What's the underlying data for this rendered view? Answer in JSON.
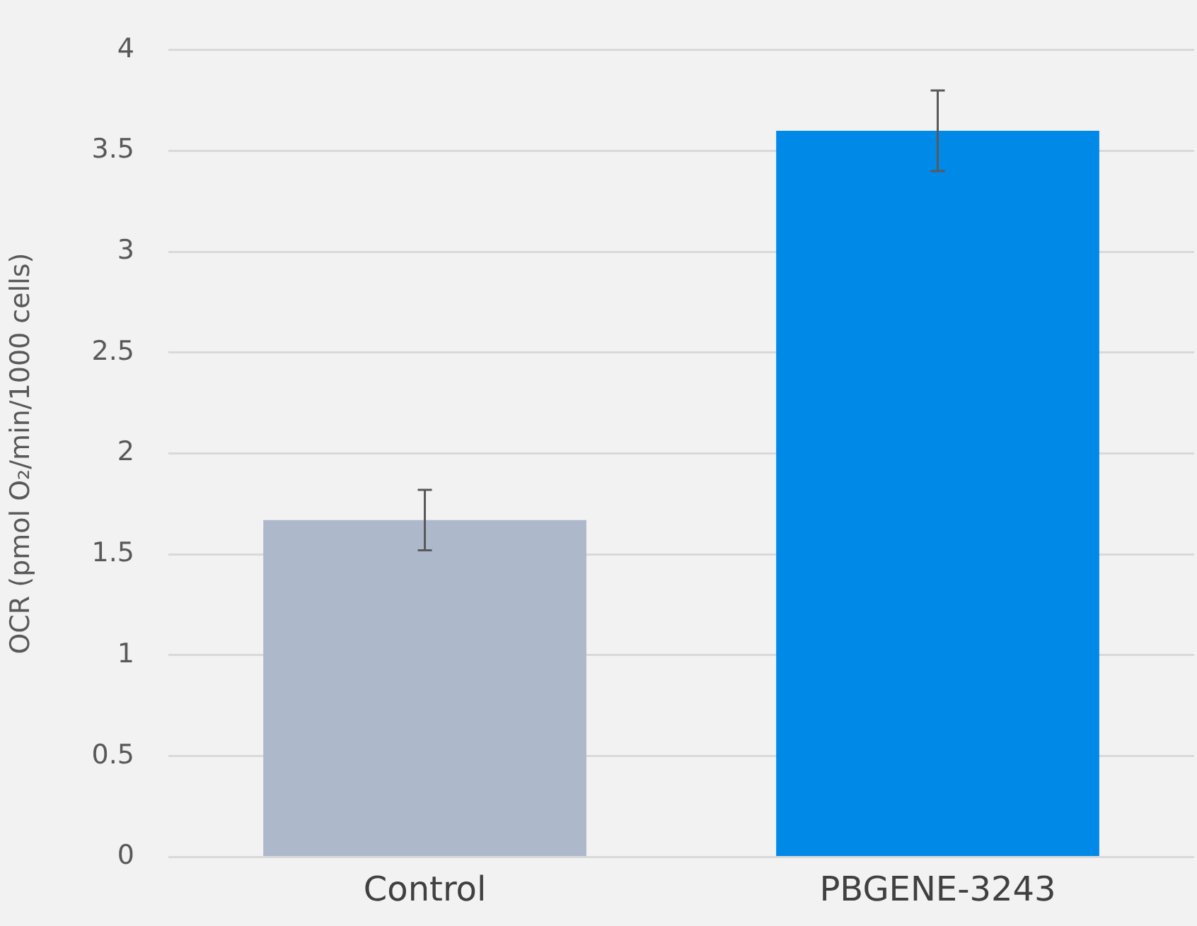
{
  "chart_data": {
    "type": "bar",
    "ylabel": "OCR (pmol O₂/min/1000 cells)",
    "categories": [
      "Control",
      "PBGENE-3243"
    ],
    "values": [
      1.67,
      3.6
    ],
    "colors": [
      "#adb9ca",
      "#0089e7"
    ],
    "errors": [
      [
        1.52,
        1.82
      ],
      [
        3.4,
        3.8
      ]
    ],
    "ylim": [
      0,
      4
    ],
    "yticks": [
      0,
      0.5,
      1,
      1.5,
      2,
      2.5,
      3,
      3.5,
      4
    ],
    "grid": "y",
    "legend": false
  }
}
